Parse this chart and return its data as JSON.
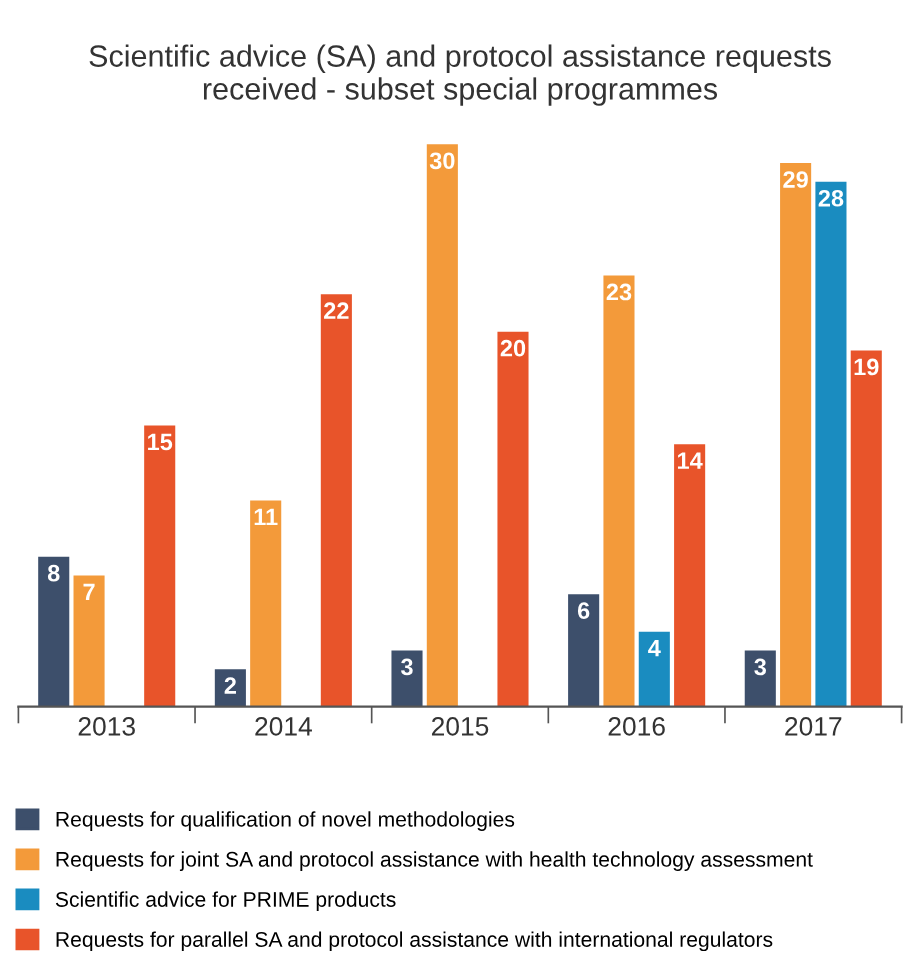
{
  "chart_data": {
    "type": "bar",
    "title": "Scientific advice (SA) and protocol assistance requests\nreceived - subset special programmes",
    "categories": [
      "2013",
      "2014",
      "2015",
      "2016",
      "2017"
    ],
    "series": [
      {
        "name": "Requests for qualification of novel methodologies",
        "color": "#3d4f6b",
        "values": [
          8,
          2,
          3,
          6,
          3
        ]
      },
      {
        "name": "Requests for joint SA and protocol assistance with health technology assessment",
        "color": "#f39a3a",
        "values": [
          7,
          11,
          30,
          23,
          29
        ]
      },
      {
        "name": "Scientific advice for PRIME products",
        "color": "#1a8cc0",
        "values": [
          null,
          null,
          null,
          4,
          28
        ]
      },
      {
        "name": "Requests for parallel SA and protocol assistance with international regulators",
        "color": "#e8542a",
        "values": [
          15,
          22,
          20,
          14,
          19
        ]
      }
    ],
    "data_labels": true,
    "legend": "bottom",
    "grid": false
  }
}
